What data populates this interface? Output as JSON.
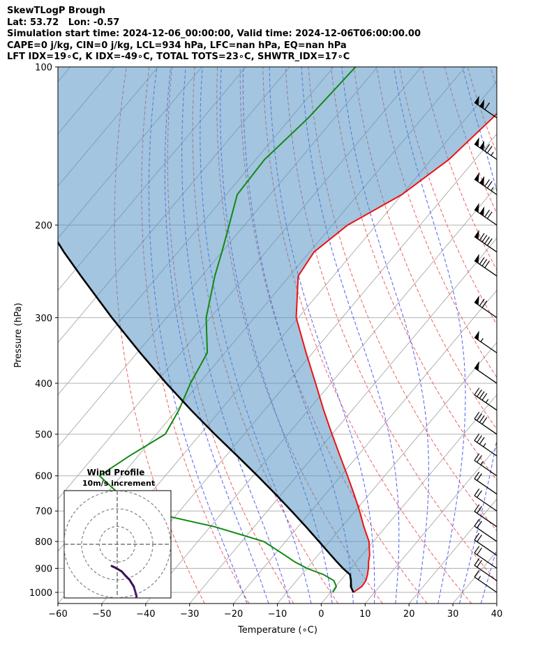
{
  "header": {
    "title": "SkewTLogP Brough",
    "location": "Lat: 53.72   Lon: -0.57",
    "times": "Simulation start time: 2024-12-06_00:00:00, Valid time: 2024-12-06T06:00:00.00",
    "params": "CAPE=0 j/kg, CIN=0 j/kg, LCL=934 hPa, LFC=nan hPa, EQ=nan hPa",
    "indices": "LFT IDX=19∘C, K IDX=-49∘C, TOTAL TOTS=23∘C, SHWTR_IDX=17∘C"
  },
  "chart_data": {
    "type": "skewt",
    "xlabel": "Temperature (∘C)",
    "ylabel": "Pressure (hPa)",
    "xlim": [
      -60,
      40
    ],
    "ylim": [
      1050,
      100
    ],
    "x_ticks": [
      -60,
      -50,
      -40,
      -30,
      -20,
      -10,
      0,
      10,
      20,
      30,
      40
    ],
    "x_tick_labels": [
      "−60",
      "−50",
      "−40",
      "−30",
      "−20",
      "−10",
      "0",
      "10",
      "20",
      "30",
      "40"
    ],
    "y_ticks": [
      100,
      200,
      300,
      400,
      500,
      600,
      700,
      800,
      900,
      1000
    ],
    "y_tick_labels": [
      "100",
      "200",
      "300",
      "400",
      "500",
      "600",
      "700",
      "800",
      "900",
      "1000"
    ],
    "pressure": [
      1000,
      975,
      950,
      925,
      900,
      875,
      850,
      800,
      750,
      700,
      650,
      600,
      550,
      500,
      450,
      400,
      350,
      300,
      250,
      225,
      200,
      175,
      150,
      125,
      100
    ],
    "series": [
      {
        "name": "Temperature",
        "color": "#ee1111",
        "values": [
          5.2,
          6.0,
          5.8,
          5.0,
          4.0,
          2.8,
          1.8,
          -1.0,
          -5.0,
          -9.0,
          -13.5,
          -18.5,
          -24.0,
          -30.0,
          -36.5,
          -43.5,
          -51.5,
          -60.5,
          -68.0,
          -69.0,
          -66.5,
          -60.0,
          -56.0,
          -54.0,
          -52.5
        ]
      },
      {
        "name": "Dewpoint",
        "color": "#118811",
        "values": [
          0.5,
          0.2,
          -1.5,
          -5.0,
          -10.0,
          -14.0,
          -17.5,
          -25.0,
          -39.0,
          -58.0,
          -67.0,
          -75.0,
          -72.0,
          -68.0,
          -69.5,
          -72.0,
          -74.0,
          -81.0,
          -87.0,
          -90.0,
          -93.5,
          -97.5,
          -98.0,
          -96.0,
          -95.0
        ]
      },
      {
        "name": "Parcel",
        "color": "#000000",
        "values": [
          5.2,
          3.5,
          2.4,
          1.0,
          -1.8,
          -4.4,
          -7.0,
          -12.4,
          -18.2,
          -24.5,
          -31.4,
          -39.0,
          -47.4,
          -56.7,
          -66.7,
          -77.5,
          -89.3,
          -102.5,
          -117.5,
          -126.0,
          -135.0,
          -145.0,
          -156.0,
          -168.5,
          -183.0
        ]
      }
    ],
    "dry_adiabats_theta_C": [
      -30,
      -20,
      -10,
      0,
      10,
      20,
      30,
      40,
      50,
      60,
      70,
      80,
      90,
      100,
      110,
      120,
      130,
      140,
      150,
      160,
      170,
      180,
      190,
      200
    ],
    "moist_adiabats_start_C": [
      -20,
      -15,
      -10,
      -5,
      0,
      5,
      10,
      15,
      20,
      25,
      30,
      35
    ],
    "isotherms_C": [
      -160,
      -150,
      -140,
      -130,
      -120,
      -110,
      -100,
      -90,
      -80,
      -70,
      -60,
      -50,
      -40,
      -30,
      -20,
      -10,
      0,
      10,
      20,
      30,
      40
    ],
    "grid": true,
    "winds": [
      {
        "p": 125,
        "speed_kt": 110,
        "dir": 290
      },
      {
        "p": 150,
        "speed_kt": 125,
        "dir": 290
      },
      {
        "p": 175,
        "speed_kt": 125,
        "dir": 290
      },
      {
        "p": 200,
        "speed_kt": 120,
        "dir": 290
      },
      {
        "p": 225,
        "speed_kt": 90,
        "dir": 300
      },
      {
        "p": 250,
        "speed_kt": 80,
        "dir": 300
      },
      {
        "p": 300,
        "speed_kt": 70,
        "dir": 300
      },
      {
        "p": 350,
        "speed_kt": 55,
        "dir": 300
      },
      {
        "p": 400,
        "speed_kt": 50,
        "dir": 300
      },
      {
        "p": 450,
        "speed_kt": 45,
        "dir": 300
      },
      {
        "p": 500,
        "speed_kt": 40,
        "dir": 300
      },
      {
        "p": 550,
        "speed_kt": 35,
        "dir": 300
      },
      {
        "p": 600,
        "speed_kt": 25,
        "dir": 300
      },
      {
        "p": 650,
        "speed_kt": 20,
        "dir": 300
      },
      {
        "p": 700,
        "speed_kt": 20,
        "dir": 310
      },
      {
        "p": 750,
        "speed_kt": 20,
        "dir": 320
      },
      {
        "p": 800,
        "speed_kt": 20,
        "dir": 330
      },
      {
        "p": 850,
        "speed_kt": 20,
        "dir": 340
      },
      {
        "p": 900,
        "speed_kt": 20,
        "dir": 350
      },
      {
        "p": 950,
        "speed_kt": 20,
        "dir": 0
      },
      {
        "p": 1000,
        "speed_kt": 15,
        "dir": 10
      }
    ],
    "hodograph": {
      "title": "Wind Profile",
      "subtitle": "10m/s increment",
      "rings_ms": [
        10,
        20,
        30
      ],
      "u_ms": [
        5.5,
        5.0,
        4.2,
        3.5,
        2.8,
        2.0,
        1.2,
        0.6,
        0.0,
        -0.8,
        -1.6,
        -2.2,
        -2.0,
        -1.5,
        -0.5,
        0.5,
        1.5,
        2.5,
        3.0,
        3.3,
        3.5,
        3.0,
        2.2,
        1.5,
        0.8,
        -0.2,
        -1.0
      ],
      "v_ms": [
        -23.5,
        -21.5,
        -19.5,
        -18.0,
        -16.5,
        -15.5,
        -14.5,
        -14.2,
        -14.0,
        -14.0,
        -14.5,
        -15.5,
        -16.5,
        -17.0,
        -16.5,
        -16.0,
        -15.5,
        -14.5,
        -13.5,
        -11.5,
        -9.5,
        -7.8,
        -6.5,
        -5.8,
        -5.0,
        -4.4,
        -4.0
      ]
    }
  }
}
